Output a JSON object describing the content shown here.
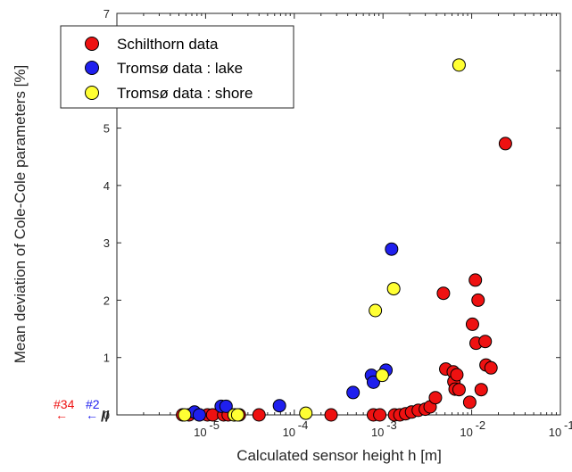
{
  "chart_data": {
    "type": "scatter",
    "xscale": "log",
    "xlim": [
      1e-06,
      0.1
    ],
    "ylim": [
      0,
      7
    ],
    "xlabel": "Calculated sensor height h [m]",
    "ylabel": "Mean deviation of Cole-Cole  parameters [%]",
    "x_tick_values": [
      1e-05,
      0.0001,
      0.001,
      0.01,
      0.1
    ],
    "x_tick_labels": [
      [
        "10",
        "-5"
      ],
      [
        "10",
        "-4"
      ],
      [
        "10",
        "-3"
      ],
      [
        "10",
        "-2"
      ],
      [
        "10",
        "-1"
      ]
    ],
    "y_ticks": [
      0,
      1,
      2,
      3,
      4,
      5,
      6,
      7
    ],
    "grid": false,
    "legend_position": "top-left",
    "series": [
      {
        "name": "Schilthorn data",
        "color": "#ee1111",
        "points": [
          [
            5.5e-06,
            0
          ],
          [
            6.5e-06,
            0
          ],
          [
            8.5e-06,
            0
          ],
          [
            1.05e-05,
            0
          ],
          [
            1.2e-05,
            0
          ],
          [
            1.6e-05,
            0
          ],
          [
            1.8e-05,
            0
          ],
          [
            2.1e-05,
            0
          ],
          [
            2.4e-05,
            0
          ],
          [
            4e-05,
            0
          ],
          [
            0.00026,
            0
          ],
          [
            0.00078,
            0
          ],
          [
            0.00092,
            0
          ],
          [
            0.00135,
            0
          ],
          [
            0.00155,
            0
          ],
          [
            0.0018,
            0.02
          ],
          [
            0.0021,
            0.05
          ],
          [
            0.0025,
            0.08
          ],
          [
            0.003,
            0.1
          ],
          [
            0.0034,
            0.14
          ],
          [
            0.0039,
            0.3
          ],
          [
            0.0048,
            2.12
          ],
          [
            0.0051,
            0.8
          ],
          [
            0.0062,
            0.75
          ],
          [
            0.0063,
            0.58
          ],
          [
            0.0065,
            0.45
          ],
          [
            0.0068,
            0.7
          ],
          [
            0.0072,
            0.44
          ],
          [
            0.0095,
            0.22
          ],
          [
            0.0102,
            1.58
          ],
          [
            0.011,
            2.35
          ],
          [
            0.0112,
            1.25
          ],
          [
            0.0118,
            2.0
          ],
          [
            0.0128,
            0.44
          ],
          [
            0.0142,
            1.28
          ],
          [
            0.0145,
            0.87
          ],
          [
            0.0165,
            0.82
          ],
          [
            0.024,
            4.73
          ]
        ]
      },
      {
        "name": "Tromsø data : lake",
        "color": "#1f1fee",
        "points": [
          [
            7.5e-06,
            0.05
          ],
          [
            8.5e-06,
            0
          ],
          [
            1.5e-05,
            0.15
          ],
          [
            1.7e-05,
            0.15
          ],
          [
            6.8e-05,
            0.16
          ],
          [
            0.00046,
            0.39
          ],
          [
            0.00074,
            0.69
          ],
          [
            0.00078,
            0.57
          ],
          [
            0.00108,
            0.78
          ],
          [
            0.00125,
            2.89
          ]
        ]
      },
      {
        "name": "Tromsø data : shore",
        "color": "#ffff33",
        "points": [
          [
            5.8e-06,
            0
          ],
          [
            2.1e-05,
            0
          ],
          [
            2.3e-05,
            0
          ],
          [
            0.000135,
            0.03
          ],
          [
            0.00082,
            1.82
          ],
          [
            0.00098,
            0.69
          ],
          [
            0.00132,
            2.2
          ],
          [
            0.0072,
            6.1
          ]
        ]
      }
    ],
    "annotations": [
      {
        "text": "#34",
        "arrow": "←",
        "color": "#ee1111"
      },
      {
        "text": "#2",
        "arrow": "←",
        "color": "#1f1fee"
      }
    ],
    "axis_break": "//"
  }
}
